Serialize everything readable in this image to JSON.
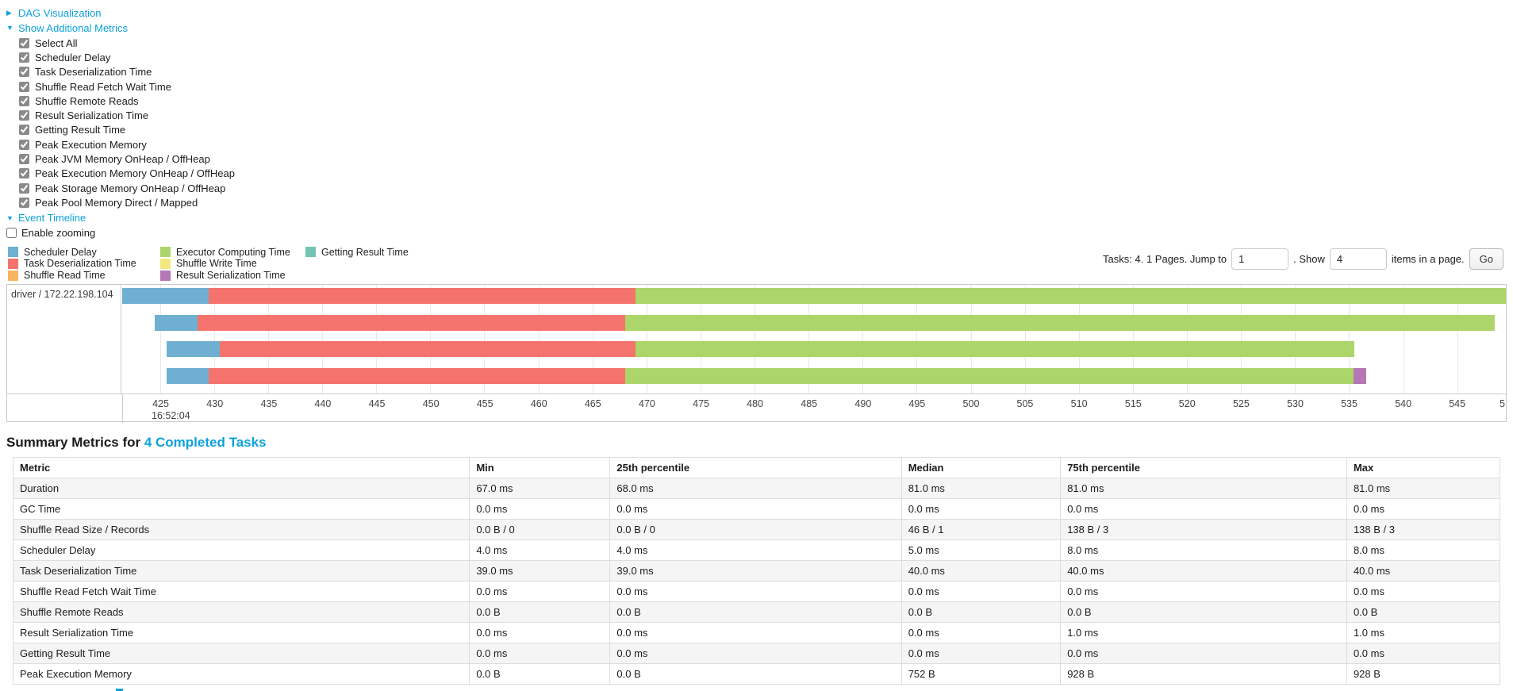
{
  "colors": {
    "link": "#0da2dc",
    "scheduler_delay": "#6FB0D2",
    "task_deserialization": "#F4746D",
    "shuffle_read": "#F9B55F",
    "executor_computing": "#ACD56A",
    "shuffle_write": "#F3E97F",
    "result_serialization": "#B577B5",
    "getting_result": "#72C6B2"
  },
  "icons": {
    "caret_right": "▶",
    "caret_down": "▼"
  },
  "toggles": {
    "dag_label": "DAG Visualization",
    "metrics_label": "Show Additional Metrics",
    "timeline_label": "Event Timeline"
  },
  "additional_metrics": {
    "items": [
      {
        "label": "Select All",
        "checked": true
      },
      {
        "label": "Scheduler Delay",
        "checked": true
      },
      {
        "label": "Task Deserialization Time",
        "checked": true
      },
      {
        "label": "Shuffle Read Fetch Wait Time",
        "checked": true
      },
      {
        "label": "Shuffle Remote Reads",
        "checked": true
      },
      {
        "label": "Result Serialization Time",
        "checked": true
      },
      {
        "label": "Getting Result Time",
        "checked": true
      },
      {
        "label": "Peak Execution Memory",
        "checked": true
      },
      {
        "label": "Peak JVM Memory OnHeap / OffHeap",
        "checked": true
      },
      {
        "label": "Peak Execution Memory OnHeap / OffHeap",
        "checked": true
      },
      {
        "label": "Peak Storage Memory OnHeap / OffHeap",
        "checked": true
      },
      {
        "label": "Peak Pool Memory Direct / Mapped",
        "checked": true
      }
    ]
  },
  "enable_zooming": {
    "label": "Enable zooming",
    "checked": false
  },
  "legend": {
    "columns": [
      [
        {
          "label": "Scheduler Delay",
          "color_key": "scheduler_delay"
        },
        {
          "label": "Task Deserialization Time",
          "color_key": "task_deserialization"
        },
        {
          "label": "Shuffle Read Time",
          "color_key": "shuffle_read"
        }
      ],
      [
        {
          "label": "Executor Computing Time",
          "color_key": "executor_computing"
        },
        {
          "label": "Shuffle Write Time",
          "color_key": "shuffle_write"
        },
        {
          "label": "Result Serialization Time",
          "color_key": "result_serialization"
        }
      ],
      [
        {
          "label": "Getting Result Time",
          "color_key": "getting_result"
        }
      ]
    ]
  },
  "pagination": {
    "prefix": "Tasks: 4. 1 Pages. Jump to",
    "jump_value": "1",
    "mid": ". Show",
    "show_value": "4",
    "suffix": "items in a page.",
    "go_label": "Go"
  },
  "chart_data": {
    "type": "timeline",
    "title": "Event Timeline",
    "group_label": "driver / 172.22.198.104",
    "x_start_label": "16:52:04",
    "axis_range": [
      421.5,
      549.5
    ],
    "x_ticks": [
      425,
      430,
      435,
      440,
      445,
      450,
      455,
      460,
      465,
      470,
      475,
      480,
      485,
      490,
      495,
      500,
      505,
      510,
      515,
      520,
      525,
      530,
      535,
      540,
      545
    ],
    "truncated_last_tick": "5",
    "tasks": [
      {
        "segments": [
          {
            "metric": "scheduler_delay",
            "start": 421.5,
            "end": 429.5
          },
          {
            "metric": "task_deserialization",
            "start": 429.5,
            "end": 469.0
          },
          {
            "metric": "executor_computing",
            "start": 469.0,
            "end": 549.5
          }
        ]
      },
      {
        "segments": [
          {
            "metric": "scheduler_delay",
            "start": 424.5,
            "end": 428.5
          },
          {
            "metric": "task_deserialization",
            "start": 428.5,
            "end": 468.0
          },
          {
            "metric": "executor_computing",
            "start": 468.0,
            "end": 548.5
          }
        ]
      },
      {
        "segments": [
          {
            "metric": "scheduler_delay",
            "start": 425.6,
            "end": 430.5
          },
          {
            "metric": "task_deserialization",
            "start": 430.5,
            "end": 469.0
          },
          {
            "metric": "executor_computing",
            "start": 469.0,
            "end": 535.5
          }
        ]
      },
      {
        "segments": [
          {
            "metric": "scheduler_delay",
            "start": 425.6,
            "end": 429.5
          },
          {
            "metric": "task_deserialization",
            "start": 429.5,
            "end": 468.0
          },
          {
            "metric": "executor_computing",
            "start": 468.0,
            "end": 535.4
          },
          {
            "metric": "result_serialization",
            "start": 535.4,
            "end": 536.6
          }
        ]
      }
    ]
  },
  "summary": {
    "heading_prefix": "Summary Metrics for ",
    "heading_link": "4 Completed Tasks",
    "table": {
      "headers": [
        "Metric",
        "Min",
        "25th percentile",
        "Median",
        "75th percentile",
        "Max"
      ],
      "col_widths": [
        "30.7%",
        "9.45%",
        "19.6%",
        "10.7%",
        "19.25%",
        "10.3%"
      ],
      "rows": [
        [
          "Duration",
          "67.0 ms",
          "68.0 ms",
          "81.0 ms",
          "81.0 ms",
          "81.0 ms"
        ],
        [
          "GC Time",
          "0.0 ms",
          "0.0 ms",
          "0.0 ms",
          "0.0 ms",
          "0.0 ms"
        ],
        [
          "Shuffle Read Size / Records",
          "0.0 B / 0",
          "0.0 B / 0",
          "46 B / 1",
          "138 B / 3",
          "138 B / 3"
        ],
        [
          "Scheduler Delay",
          "4.0 ms",
          "4.0 ms",
          "5.0 ms",
          "8.0 ms",
          "8.0 ms"
        ],
        [
          "Task Deserialization Time",
          "39.0 ms",
          "39.0 ms",
          "40.0 ms",
          "40.0 ms",
          "40.0 ms"
        ],
        [
          "Shuffle Read Fetch Wait Time",
          "0.0 ms",
          "0.0 ms",
          "0.0 ms",
          "0.0 ms",
          "0.0 ms"
        ],
        [
          "Shuffle Remote Reads",
          "0.0 B",
          "0.0 B",
          "0.0 B",
          "0.0 B",
          "0.0 B"
        ],
        [
          "Result Serialization Time",
          "0.0 ms",
          "0.0 ms",
          "0.0 ms",
          "1.0 ms",
          "1.0 ms"
        ],
        [
          "Getting Result Time",
          "0.0 ms",
          "0.0 ms",
          "0.0 ms",
          "0.0 ms",
          "0.0 ms"
        ],
        [
          "Peak Execution Memory",
          "0.0 B",
          "0.0 B",
          "752 B",
          "928 B",
          "928 B"
        ]
      ]
    }
  }
}
